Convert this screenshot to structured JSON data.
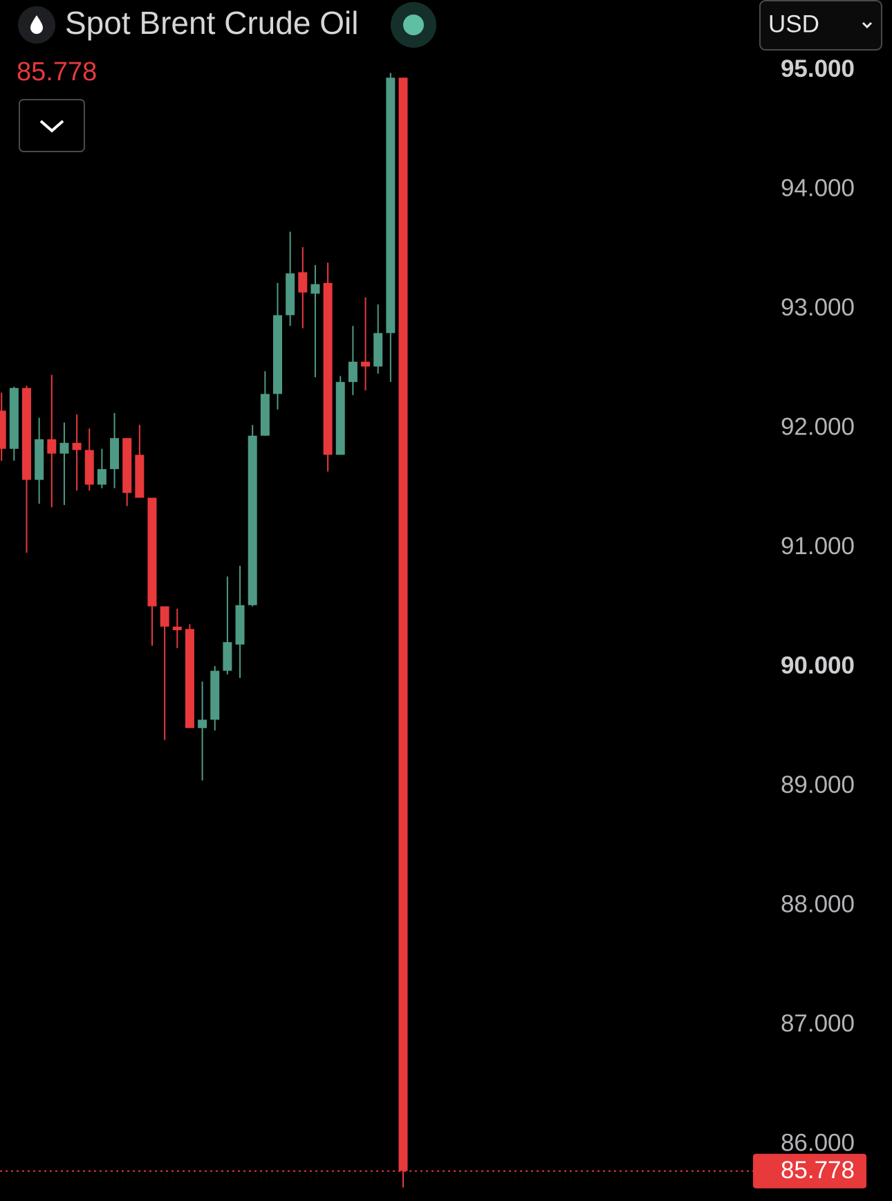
{
  "chart_data": {
    "type": "candlestick",
    "title": "Spot Brent Crude Oil",
    "currency": "USD",
    "last_price": 85.778,
    "up_color": "#4e9a85",
    "down_color": "#e8393b",
    "open": [
      92.15,
      91.83,
      92.34,
      91.57,
      91.91,
      91.79,
      91.88,
      91.82,
      91.53,
      91.66,
      91.92,
      91.78,
      91.42,
      90.51,
      90.34,
      90.32,
      89.49,
      89.56,
      89.97,
      90.19,
      90.52,
      91.94,
      92.29,
      92.95,
      93.31,
      93.13,
      93.22,
      91.78,
      92.39,
      92.56,
      92.52,
      92.8,
      94.94
    ],
    "high": [
      92.3,
      92.35,
      92.36,
      92.09,
      92.45,
      92.05,
      92.12,
      92.0,
      91.83,
      92.13,
      91.92,
      92.03,
      91.42,
      90.51,
      90.49,
      90.36,
      89.88,
      90.01,
      90.76,
      90.85,
      92.03,
      92.48,
      93.22,
      93.65,
      93.52,
      93.37,
      93.39,
      92.44,
      92.86,
      93.1,
      93.04,
      94.98,
      94.94
    ],
    "low": [
      91.73,
      91.73,
      90.96,
      91.37,
      91.34,
      91.36,
      91.48,
      91.48,
      91.5,
      91.5,
      91.35,
      91.42,
      90.18,
      89.39,
      90.16,
      89.49,
      89.05,
      89.47,
      89.94,
      89.91,
      90.51,
      91.94,
      92.16,
      92.86,
      92.84,
      92.43,
      91.64,
      91.78,
      92.28,
      92.32,
      92.46,
      92.39,
      85.64
    ],
    "close": [
      91.83,
      92.34,
      91.57,
      91.91,
      91.79,
      91.88,
      91.82,
      91.53,
      91.66,
      91.92,
      91.46,
      91.42,
      90.51,
      90.34,
      90.31,
      89.49,
      89.56,
      89.97,
      90.21,
      90.52,
      91.94,
      92.29,
      92.95,
      93.3,
      93.14,
      93.21,
      91.78,
      92.39,
      92.56,
      92.52,
      92.8,
      94.94,
      85.778
    ],
    "ylim": [
      85.527,
      95.591
    ],
    "yticks": [
      {
        "value": 86,
        "label": "86.000"
      },
      {
        "value": 87,
        "label": "87.000"
      },
      {
        "value": 88,
        "label": "88.000"
      },
      {
        "value": 89,
        "label": "89.000"
      },
      {
        "value": 90,
        "label": "90.000"
      },
      {
        "value": 91,
        "label": "91.000"
      },
      {
        "value": 92,
        "label": "92.000"
      },
      {
        "value": 93,
        "label": "93.000"
      },
      {
        "value": 94,
        "label": "94.000"
      },
      {
        "value": 95,
        "label": "95.000"
      }
    ]
  }
}
